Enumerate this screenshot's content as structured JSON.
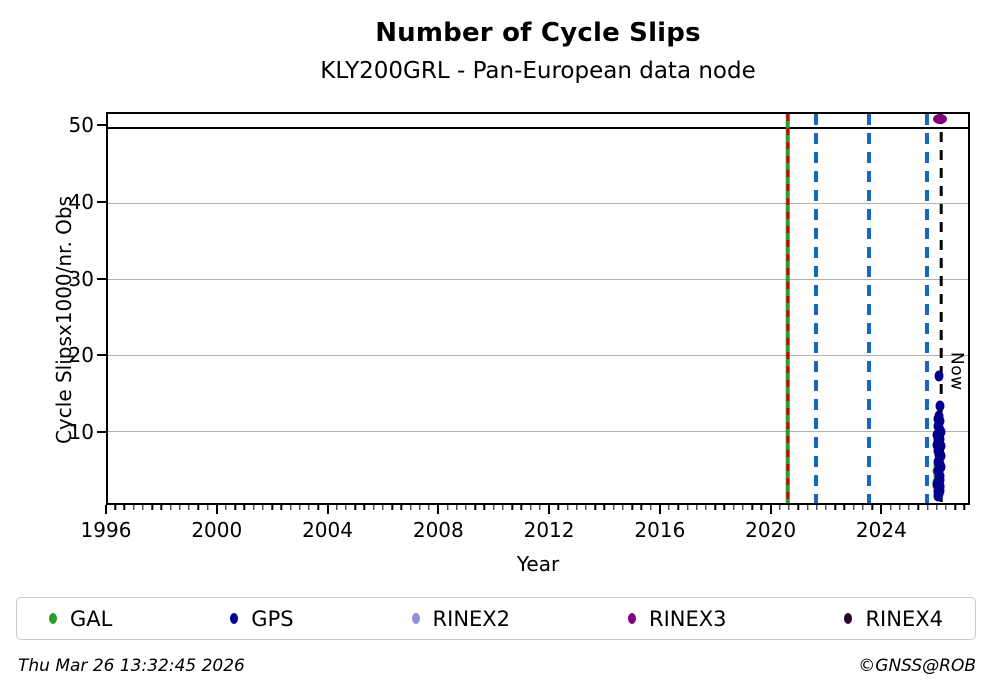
{
  "header": {
    "title": "Number of Cycle Slips",
    "subtitle": "KLY200GRL - Pan-European data node"
  },
  "footer": {
    "timestamp": "Thu Mar 26 13:32:45 2026",
    "credit": "©GNSS@ROB"
  },
  "chart_data": {
    "type": "scatter",
    "title": "Number of Cycle Slips",
    "subtitle": "KLY200GRL - Pan-European data node",
    "xlabel": "Year",
    "ylabel": "Cycle Slipsx1000/nr. Obs",
    "xlim": [
      1996,
      2027.2
    ],
    "ylim": [
      0.5,
      51.7
    ],
    "xticks": [
      1996,
      2000,
      2004,
      2008,
      2012,
      2016,
      2020,
      2024
    ],
    "x_minor_step": 0.33333,
    "yticks": [
      10,
      20,
      30,
      40,
      50
    ],
    "grid": {
      "horizontal": true,
      "gridline_color": "#b0b0b0",
      "black_hline_y": 50,
      "vertical": false
    },
    "legend_position": "bottom",
    "now_label": "Now",
    "vlines": [
      {
        "x": 2020.66,
        "style": "solid",
        "color": "#2e9b2e",
        "width": 4.5,
        "overlay": {
          "style": "dashed",
          "color": "#d40000",
          "width": 3,
          "dash": 7,
          "gap": 7
        }
      },
      {
        "x": 2021.67,
        "style": "dashed",
        "color": "#1468be",
        "width": 4,
        "dash": 11,
        "gap": 8
      },
      {
        "x": 2023.6,
        "style": "dashed",
        "color": "#1468be",
        "width": 4,
        "dash": 11,
        "gap": 8
      },
      {
        "x": 2025.7,
        "style": "dashed",
        "color": "#1468be",
        "width": 4,
        "dash": 11,
        "gap": 8
      },
      {
        "x": 2026.23,
        "style": "dashed",
        "color": "#000000",
        "width": 2.6,
        "dash": 10,
        "gap": 8,
        "label": "Now"
      }
    ],
    "series": [
      {
        "name": "GAL",
        "color": "#2e9b2e",
        "marker_w": 7,
        "marker_h": 9,
        "points": [
          [
            2026.06,
            5.4
          ],
          [
            2026.04,
            4.7
          ],
          [
            2026.08,
            4.0
          ],
          [
            2026.05,
            3.3
          ],
          [
            2026.03,
            2.7
          ],
          [
            2026.09,
            2.2
          ]
        ]
      },
      {
        "name": "GPS",
        "color": "#00008b",
        "marker_w": 9,
        "marker_h": 11,
        "points": [
          [
            2026.13,
            17.2
          ],
          [
            2026.17,
            13.3
          ],
          [
            2026.16,
            11.9
          ],
          [
            2026.12,
            11.6
          ],
          [
            2026.18,
            11.3
          ],
          [
            2026.14,
            11.0
          ],
          [
            2026.1,
            10.7
          ],
          [
            2026.16,
            10.4
          ],
          [
            2026.2,
            10.1
          ],
          [
            2026.13,
            9.8
          ],
          [
            2026.09,
            9.5
          ],
          [
            2026.15,
            9.2
          ],
          [
            2026.19,
            8.9
          ],
          [
            2026.12,
            8.6
          ],
          [
            2026.16,
            8.3
          ],
          [
            2026.21,
            8.0
          ],
          [
            2026.14,
            7.7
          ],
          [
            2026.1,
            7.4
          ],
          [
            2026.17,
            7.1
          ],
          [
            2026.13,
            6.8
          ],
          [
            2026.19,
            6.5
          ],
          [
            2026.15,
            6.2
          ],
          [
            2026.11,
            5.9
          ],
          [
            2026.18,
            5.6
          ],
          [
            2026.22,
            5.3
          ],
          [
            2026.14,
            5.0
          ],
          [
            2026.1,
            4.7
          ],
          [
            2026.16,
            4.4
          ],
          [
            2026.2,
            4.1
          ],
          [
            2026.13,
            3.8
          ],
          [
            2026.17,
            3.5
          ],
          [
            2026.11,
            3.2
          ],
          [
            2026.15,
            2.9
          ],
          [
            2026.19,
            2.6
          ],
          [
            2026.14,
            2.3
          ],
          [
            2026.1,
            2.0
          ],
          [
            2026.16,
            1.7
          ],
          [
            2026.12,
            1.4
          ],
          [
            2026.18,
            2.8
          ],
          [
            2026.15,
            4.9
          ],
          [
            2026.13,
            6.0
          ],
          [
            2026.17,
            7.9
          ],
          [
            2026.11,
            9.0
          ],
          [
            2026.2,
            2.1
          ],
          [
            2026.08,
            3.0
          ],
          [
            2026.22,
            6.7
          ],
          [
            2026.09,
            8.1
          ],
          [
            2026.21,
            9.9
          ]
        ]
      },
      {
        "name": "RINEX2",
        "color": "#8f8fd8",
        "marker_w": 8,
        "marker_h": 10,
        "points": []
      },
      {
        "name": "RINEX3",
        "color": "#800080",
        "marker_w": 14,
        "marker_h": 10,
        "points": [
          [
            2026.2,
            51.0
          ]
        ]
      },
      {
        "name": "RINEX4",
        "color": "#260726",
        "marker_w": 8,
        "marker_h": 10,
        "points": []
      }
    ]
  }
}
